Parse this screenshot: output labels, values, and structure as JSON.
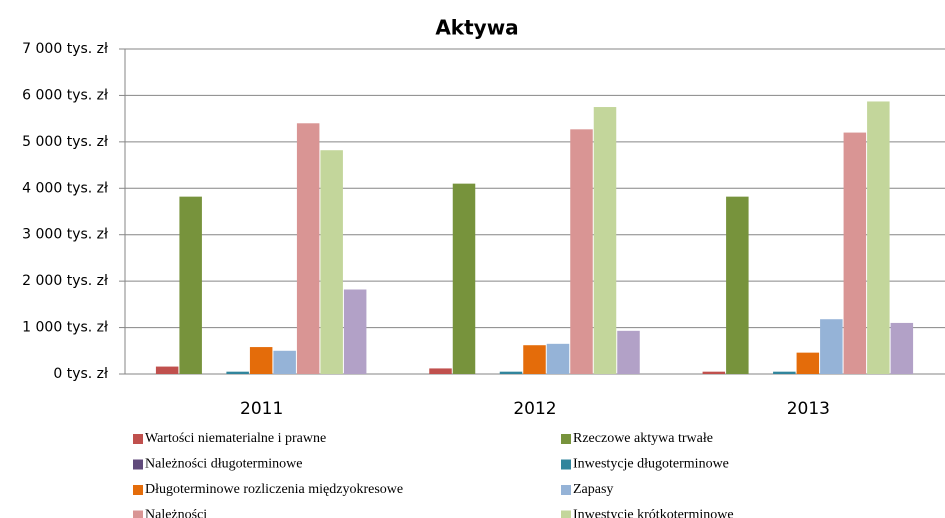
{
  "chart_data": {
    "type": "bar",
    "title": "Aktywa",
    "categories": [
      "2011",
      "2012",
      "2013"
    ],
    "series": [
      {
        "name": "Wartości niematerialne i prawne",
        "color": "#c0504d",
        "values": [
          160,
          120,
          50
        ]
      },
      {
        "name": "Rzeczowe aktywa trwałe",
        "color": "#77933c",
        "values": [
          3820,
          4100,
          3820
        ]
      },
      {
        "name": "Należności długoterminowe",
        "color": "#604a7b",
        "values": [
          0,
          0,
          0
        ]
      },
      {
        "name": "Inwestycje długoterminowe",
        "color": "#31859c",
        "values": [
          50,
          50,
          50
        ]
      },
      {
        "name": "Długoterminowe rozliczenia międzyokresowe",
        "color": "#e46c0a",
        "values": [
          580,
          620,
          460
        ]
      },
      {
        "name": "Zapasy",
        "color": "#95b3d7",
        "values": [
          500,
          650,
          1180
        ]
      },
      {
        "name": "Należności",
        "color": "#d99594",
        "values": [
          5400,
          5270,
          5200
        ]
      },
      {
        "name": "Inwestycje krótkoterminowe",
        "color": "#c3d69b",
        "values": [
          4820,
          5750,
          5870
        ]
      },
      {
        "color": "#b2a1c7",
        "values": [
          1820,
          930,
          1100
        ]
      }
    ],
    "ylim": [
      0,
      7000
    ],
    "yticks": [
      {
        "value": 0,
        "label": "0 tys. zł"
      },
      {
        "value": 1000,
        "label": "1 000 tys. zł"
      },
      {
        "value": 2000,
        "label": "2 000 tys. zł"
      },
      {
        "value": 3000,
        "label": "3 000 tys. zł"
      },
      {
        "value": 4000,
        "label": "4 000 tys. zł"
      },
      {
        "value": 5000,
        "label": "5 000 tys. zł"
      },
      {
        "value": 6000,
        "label": "6 000 tys. zł"
      },
      {
        "value": 7000,
        "label": "7 000 tys. zł"
      }
    ],
    "grid": true
  }
}
